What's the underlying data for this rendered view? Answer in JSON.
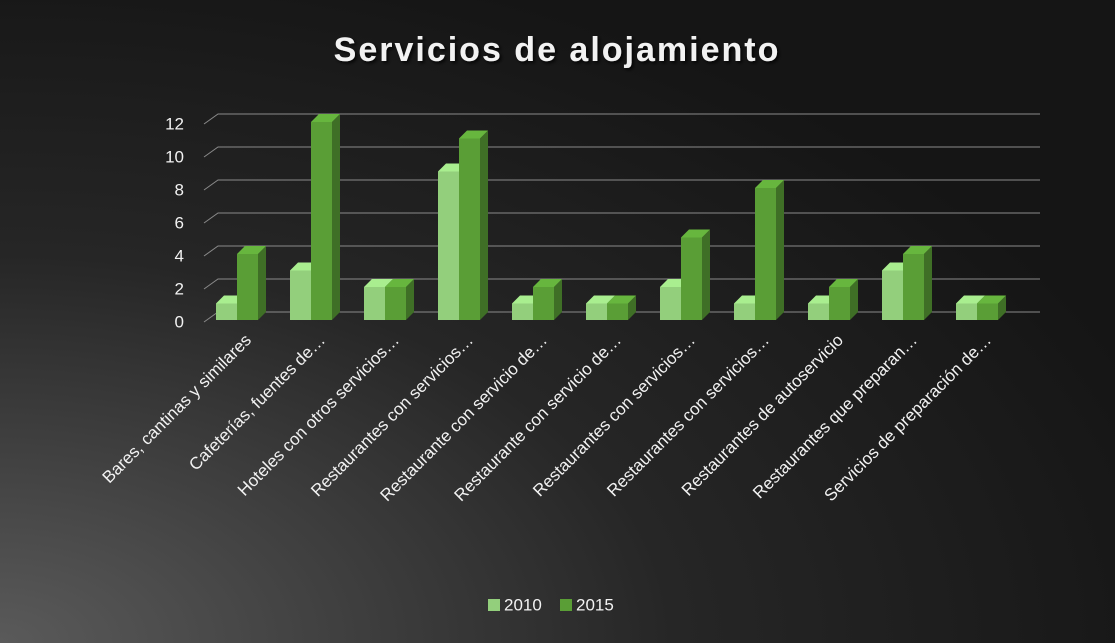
{
  "chart_data": {
    "type": "bar3d",
    "title": "Servicios de alojamiento",
    "categories": [
      "Bares, cantinas y similares",
      "Cafeterías, fuentes de…",
      "Hoteles con otros servicios…",
      "Restaurantes con servicios…",
      "Restaurante con servicio de…",
      "Restaurante con servicio de…",
      "Restaurantes con servicios…",
      "Restaurantes con servicios…",
      "Restaurantes de autoservicio",
      "Restaurantes que preparan…",
      "Servicios de preparación de…"
    ],
    "series": [
      {
        "name": "2010",
        "color": "#93cf7c",
        "values": [
          1,
          3,
          2,
          9,
          1,
          1,
          2,
          1,
          1,
          3,
          1
        ]
      },
      {
        "name": "2015",
        "color": "#5a9e36",
        "values": [
          4,
          12,
          2,
          11,
          2,
          1,
          5,
          8,
          2,
          4,
          1
        ]
      }
    ],
    "ylim": [
      0,
      12
    ],
    "yticks": [
      0,
      2,
      4,
      6,
      8,
      10,
      12
    ],
    "grid": true,
    "legend": "bottom"
  }
}
